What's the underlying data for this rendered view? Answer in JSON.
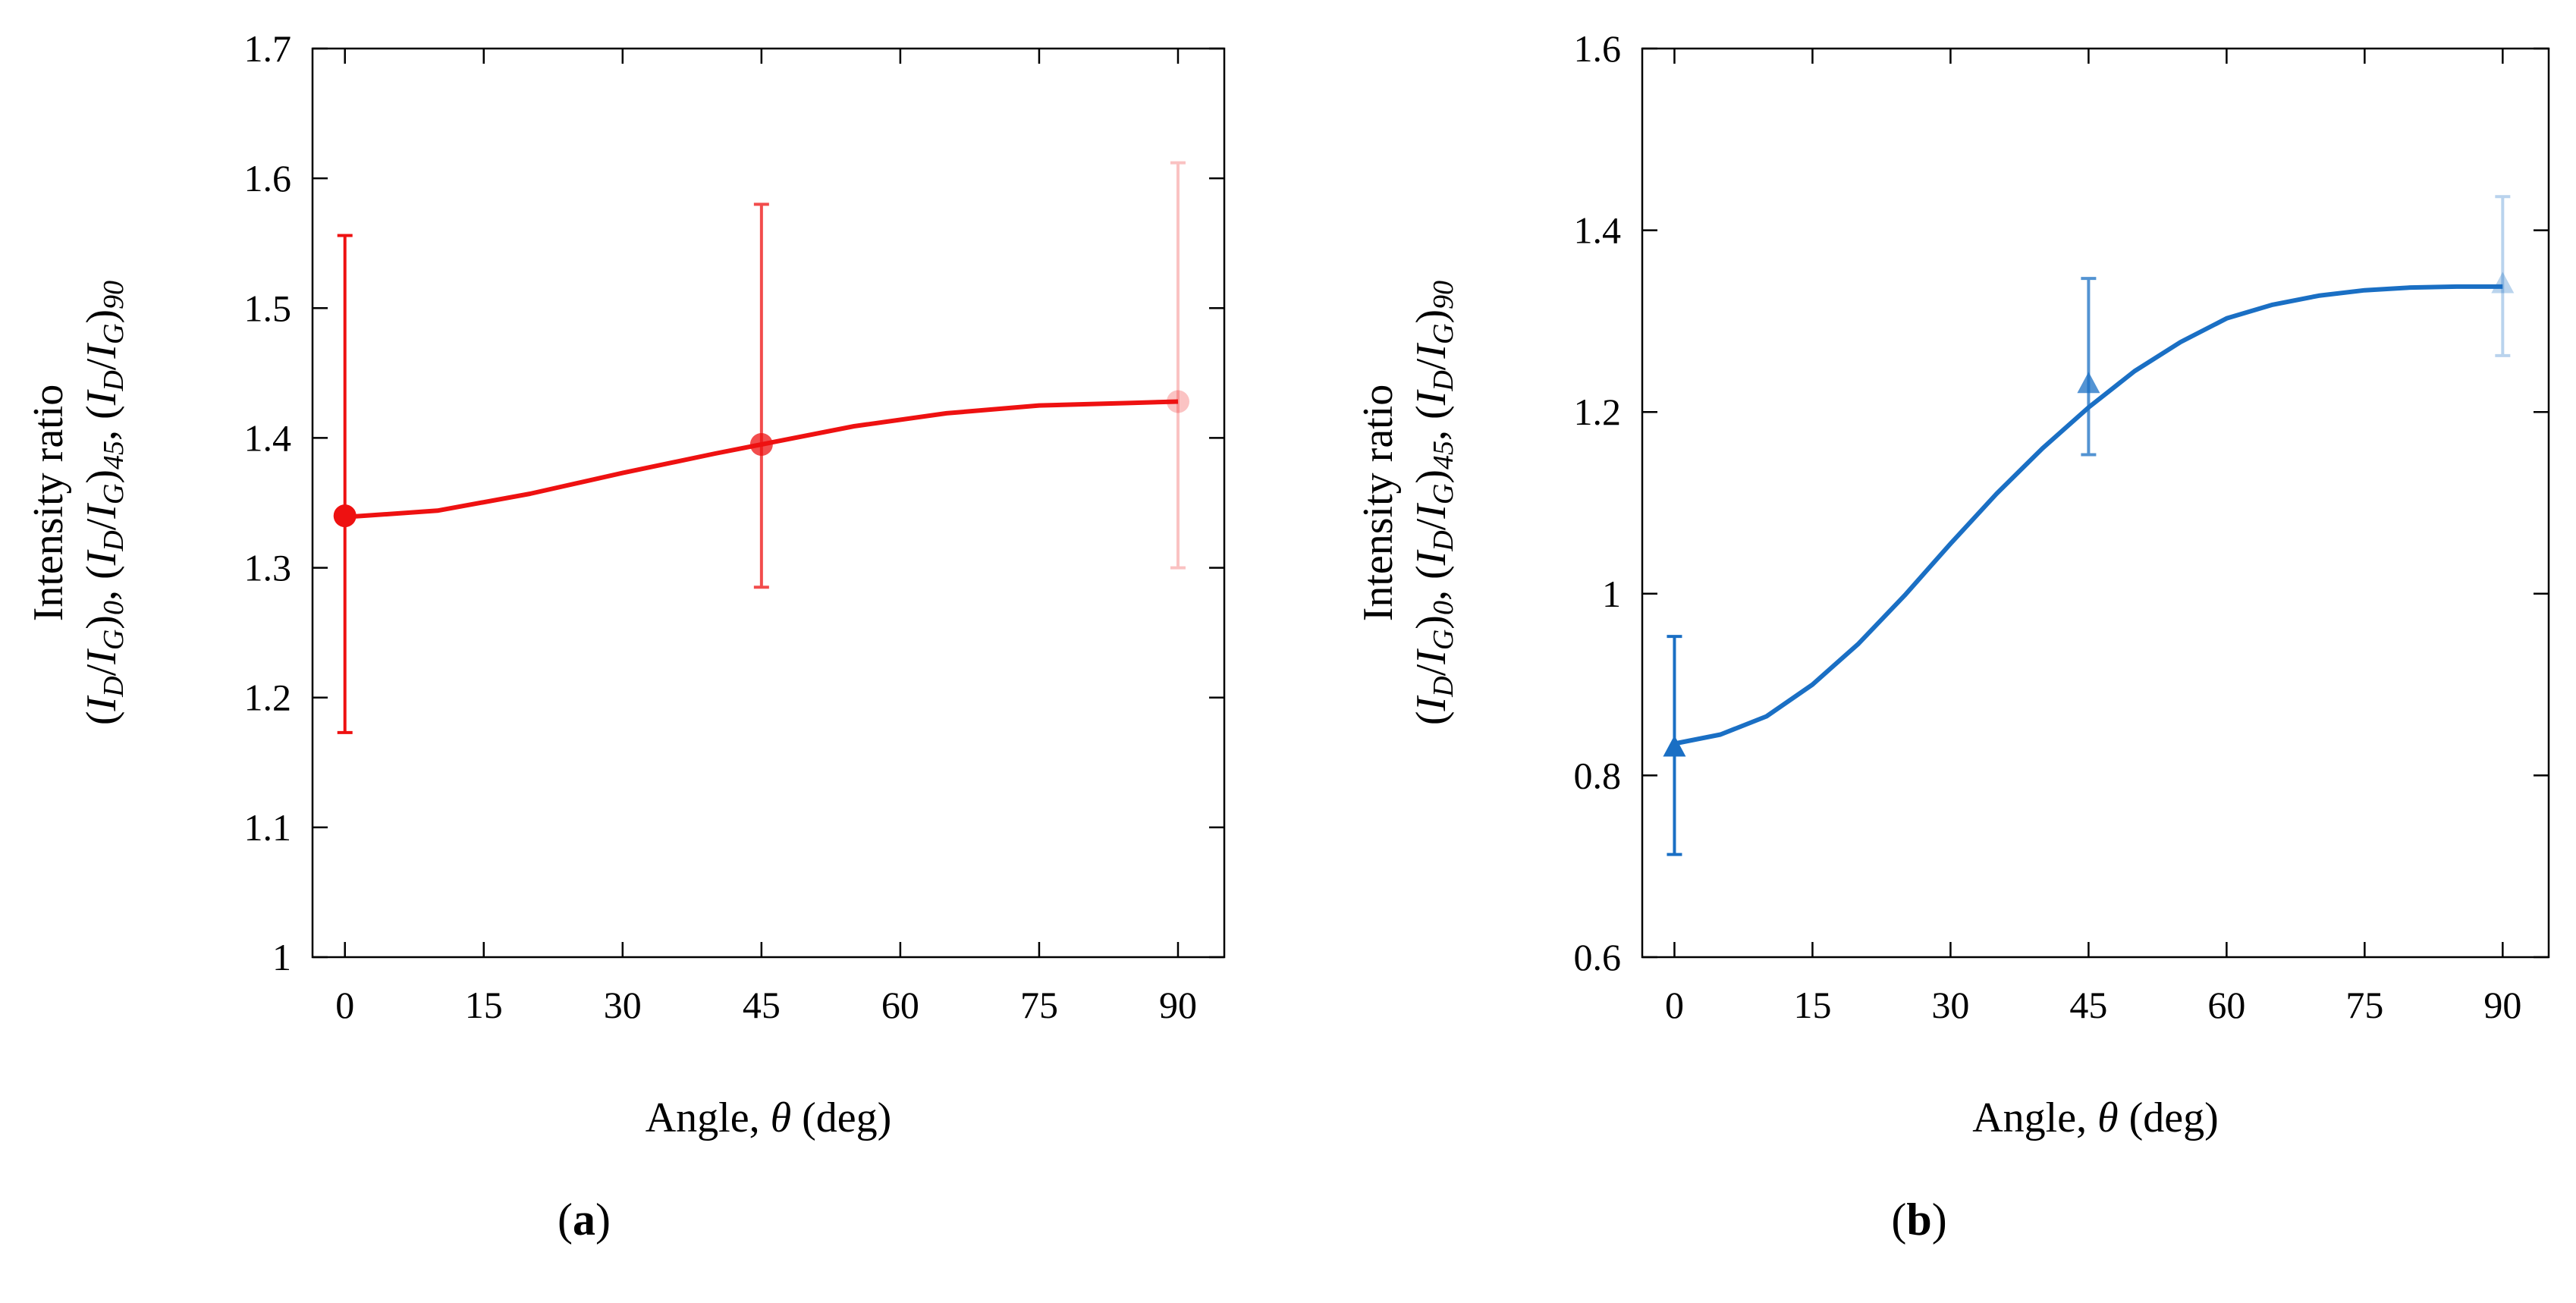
{
  "chart_data": [
    {
      "type": "line",
      "panel_label": "(a)",
      "panel_letter": "a",
      "xlabel": "Angle, θ (deg)",
      "xlabel_parts": {
        "prefix": "Angle, ",
        "symbol": "θ",
        "suffix": " (deg)"
      },
      "ylabel_line1": "Intensity ratio",
      "ylabel_line2": "(ID/IG)0, (ID/IG)45, (ID/IG)90",
      "xlim": [
        -3.5,
        95
      ],
      "ylim": [
        1,
        1.7
      ],
      "xticks": [
        0,
        15,
        30,
        45,
        60,
        75,
        90
      ],
      "yticks": [
        1,
        1.1,
        1.2,
        1.3,
        1.4,
        1.5,
        1.6,
        1.7
      ],
      "ytick_labels": [
        "1",
        "1.1",
        "1.2",
        "1.3",
        "1.4",
        "1.5",
        "1.6",
        "1.7"
      ],
      "grid": false,
      "color": "#ee1111",
      "marker": "circle",
      "points": [
        {
          "x": 0,
          "y": 1.34,
          "err_low": 1.173,
          "err_high": 1.556,
          "opacity": 1.0
        },
        {
          "x": 45,
          "y": 1.395,
          "err_low": 1.285,
          "err_high": 1.58,
          "opacity": 0.75
        },
        {
          "x": 90,
          "y": 1.428,
          "err_low": 1.3,
          "err_high": 1.612,
          "opacity": 0.25
        }
      ],
      "fit_curve": {
        "x": [
          0,
          10,
          20,
          30,
          40,
          45,
          55,
          65,
          75,
          85,
          90
        ],
        "y": [
          1.339,
          1.344,
          1.357,
          1.373,
          1.388,
          1.395,
          1.409,
          1.419,
          1.425,
          1.427,
          1.428
        ]
      }
    },
    {
      "type": "line",
      "panel_label": "(b)",
      "panel_letter": "b",
      "xlabel": "Angle, θ (deg)",
      "xlabel_parts": {
        "prefix": "Angle, ",
        "symbol": "θ",
        "suffix": " (deg)"
      },
      "ylabel_line1": "Intensity ratio",
      "ylabel_line2": "(ID/IG)0, (ID/IG)45, (ID/IG)90",
      "xlim": [
        -3.5,
        95
      ],
      "ylim": [
        0.6,
        1.6
      ],
      "xticks": [
        0,
        15,
        30,
        45,
        60,
        75,
        90
      ],
      "yticks": [
        0.6,
        0.8,
        1.0,
        1.2,
        1.4,
        1.6
      ],
      "ytick_labels": [
        "0.6",
        "0.8",
        "1",
        "1.2",
        "1.4",
        "1.6"
      ],
      "grid": false,
      "color": "#1a6fc4",
      "marker": "triangle",
      "points": [
        {
          "x": 0,
          "y": 0.83,
          "err_low": 0.713,
          "err_high": 0.953,
          "opacity": 1.0
        },
        {
          "x": 45,
          "y": 1.23,
          "err_low": 1.153,
          "err_high": 1.347,
          "opacity": 0.75
        },
        {
          "x": 90,
          "y": 1.34,
          "err_low": 1.262,
          "err_high": 1.437,
          "opacity": 0.3
        }
      ],
      "fit_curve": {
        "x": [
          0,
          5,
          10,
          15,
          20,
          25,
          30,
          35,
          40,
          45,
          50,
          55,
          60,
          65,
          70,
          75,
          80,
          85,
          90
        ],
        "y": [
          0.835,
          0.845,
          0.865,
          0.9,
          0.945,
          0.998,
          1.055,
          1.11,
          1.16,
          1.205,
          1.245,
          1.277,
          1.303,
          1.318,
          1.328,
          1.334,
          1.337,
          1.338,
          1.338
        ]
      }
    }
  ]
}
